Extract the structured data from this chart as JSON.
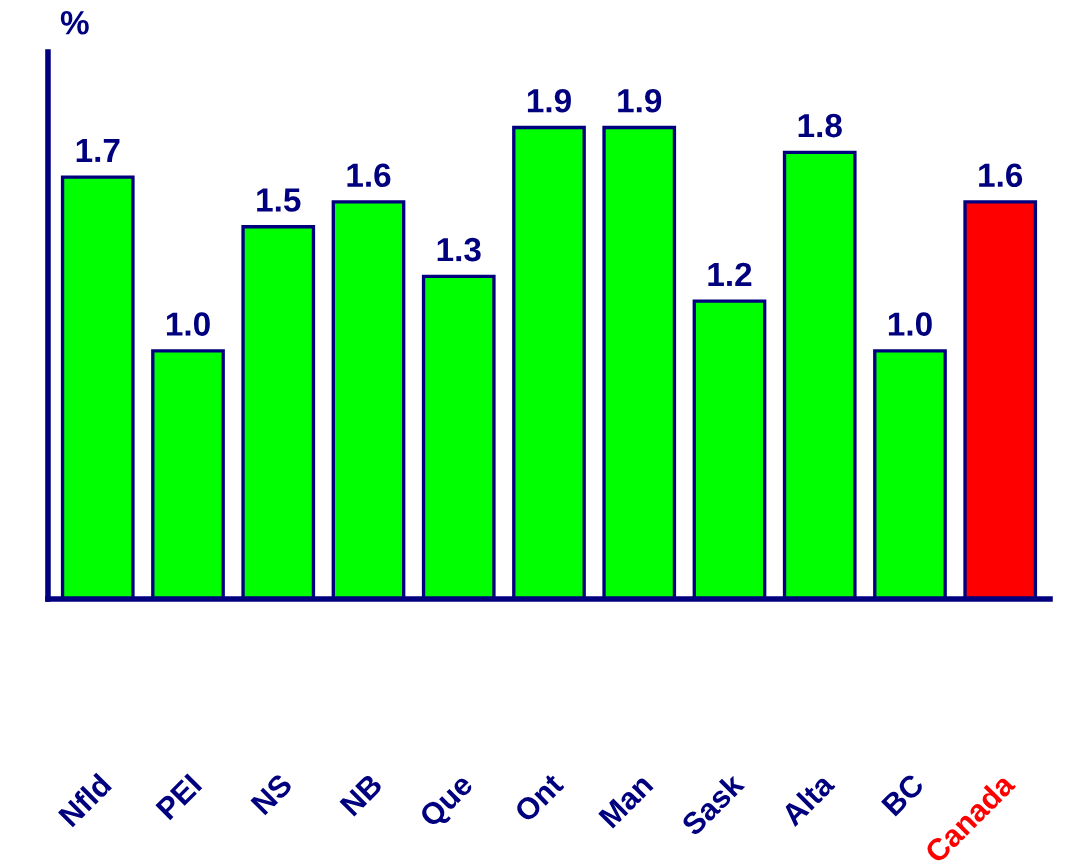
{
  "chart_data": {
    "type": "bar",
    "ylabel": "%",
    "categories": [
      "Nfld",
      "PEI",
      "NS",
      "NB",
      "Que",
      "Ont",
      "Man",
      "Sask",
      "Alta",
      "BC",
      "Canada"
    ],
    "values": [
      1.7,
      1.0,
      1.5,
      1.6,
      1.3,
      1.9,
      1.9,
      1.2,
      1.8,
      1.0,
      1.6
    ],
    "colors": [
      "#00ff00",
      "#00ff00",
      "#00ff00",
      "#00ff00",
      "#00ff00",
      "#00ff00",
      "#00ff00",
      "#00ff00",
      "#00ff00",
      "#00ff00",
      "#ff0000"
    ],
    "value_labels": [
      "1.7",
      "1.0",
      "1.5",
      "1.6",
      "1.3",
      "1.9",
      "1.9",
      "1.2",
      "1.8",
      "1.0",
      "1.6"
    ],
    "grid": false,
    "legend": false
  }
}
